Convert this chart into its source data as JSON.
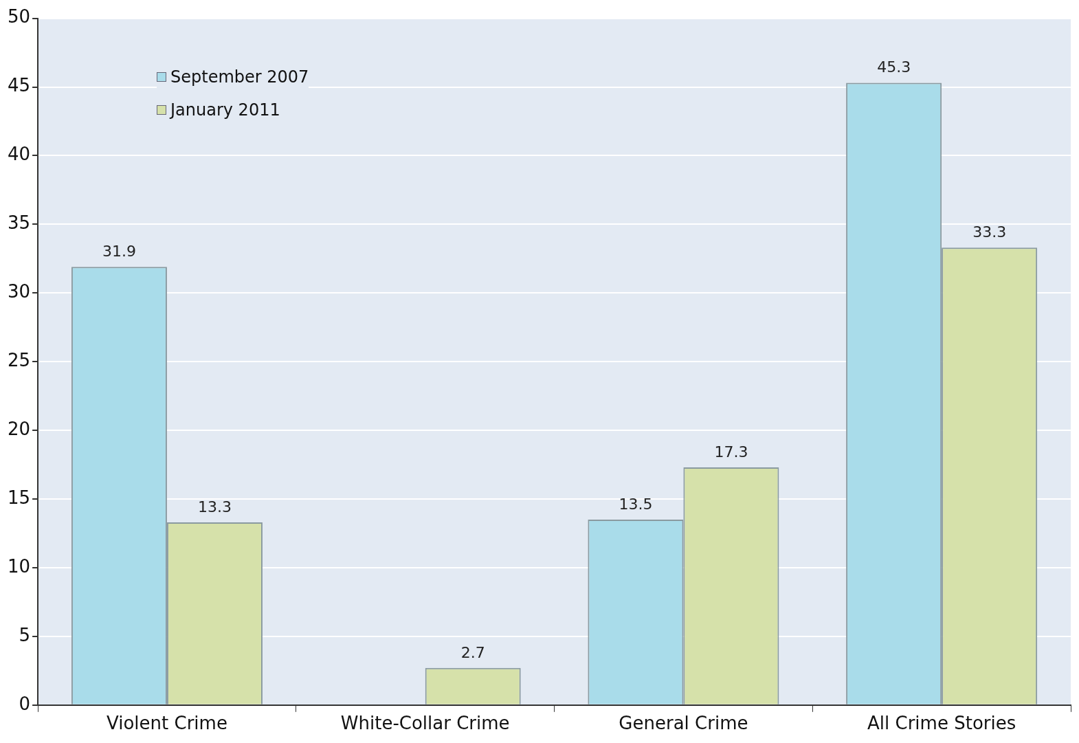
{
  "chart_data": {
    "type": "bar",
    "categories": [
      "Violent Crime",
      "White-Collar Crime",
      "General Crime",
      "All Crime Stories"
    ],
    "series": [
      {
        "name": "September 2007",
        "color": "#a9dcea",
        "values": [
          31.9,
          null,
          13.5,
          45.3
        ]
      },
      {
        "name": "January 2011",
        "color": "#d6e1aa",
        "values": [
          13.3,
          2.7,
          17.3,
          33.3
        ]
      }
    ],
    "ylim": [
      0,
      50
    ],
    "yticks": [
      0,
      5,
      10,
      15,
      20,
      25,
      30,
      35,
      40,
      45,
      50
    ],
    "grid": "y",
    "legend": "top left",
    "data_labels": true
  }
}
